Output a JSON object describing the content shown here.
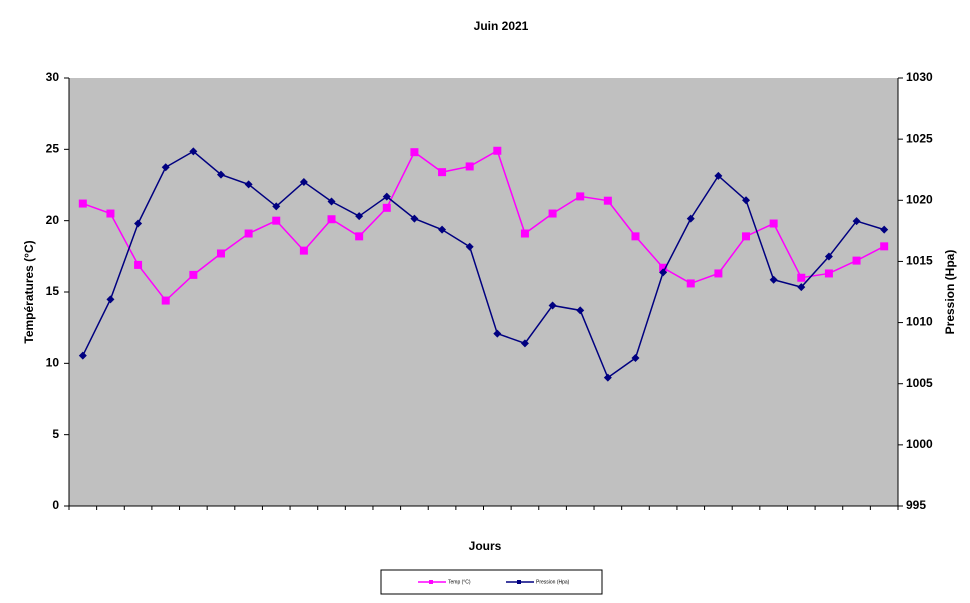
{
  "chart_data": {
    "type": "line",
    "title": "Juin 2021",
    "x_label": "Jours",
    "y_label": "Températures (°C)",
    "y2_label": "Pression (Hpa)",
    "categories": [
      null,
      null,
      null,
      null,
      null,
      null,
      null,
      null,
      null,
      null,
      null,
      null,
      null,
      null,
      null,
      null,
      null,
      null,
      null,
      null,
      null,
      null,
      null,
      null,
      null,
      null,
      null,
      null,
      null,
      null
    ],
    "ylim": [
      0,
      30
    ],
    "yticks": [
      0,
      5,
      10,
      15,
      20,
      25,
      30
    ],
    "y2lim": [
      995,
      1030
    ],
    "y2ticks": [
      995,
      1000,
      1005,
      1010,
      1015,
      1020,
      1025,
      1030
    ],
    "plot_background": "#c0c0c0",
    "legend": "bottom",
    "series": [
      {
        "name": "Temp (°C)",
        "color": "#ff00ff",
        "marker": "square",
        "values": [
          21.2,
          20.5,
          16.9,
          14.4,
          16.2,
          17.7,
          19.1,
          20.0,
          17.9,
          20.1,
          18.9,
          20.9,
          24.8,
          23.4,
          23.8,
          24.9,
          19.1,
          20.5,
          21.7,
          21.4,
          18.9,
          16.7,
          15.6,
          16.3,
          18.9,
          19.8,
          16.0,
          16.3,
          17.2,
          18.2
        ]
      },
      {
        "name": "Pression (Hpa)",
        "color": "#000080",
        "marker": "diamond",
        "axis": "y2",
        "values": [
          1007.3,
          1011.9,
          1018.1,
          1022.7,
          1024.0,
          1022.1,
          1021.3,
          1019.5,
          1021.5,
          1019.9,
          1018.7,
          1020.3,
          1018.5,
          1017.6,
          1016.2,
          1009.1,
          1008.3,
          1011.4,
          1011.0,
          1005.5,
          1007.1,
          1014.1,
          1018.5,
          1022.0,
          1020.0,
          1013.5,
          1012.9,
          1015.4,
          1018.3,
          1017.6
        ]
      }
    ]
  }
}
